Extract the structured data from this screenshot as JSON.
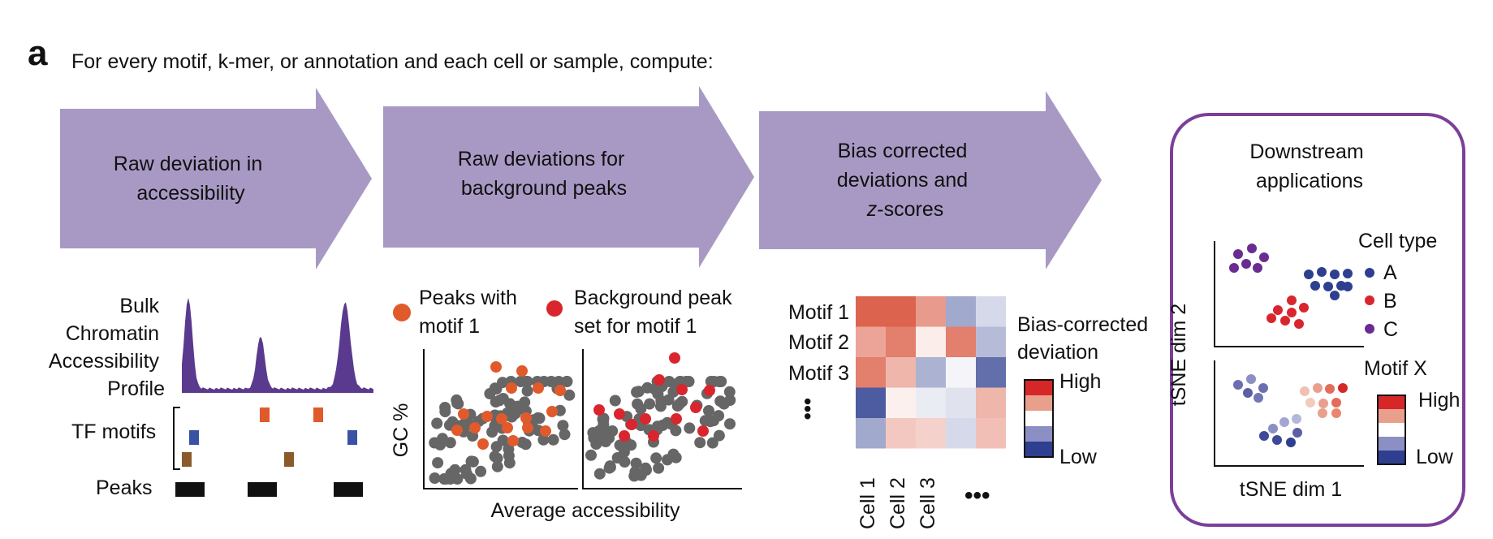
{
  "panel": {
    "letter": "a",
    "title": "For every motif, k-mer, or annotation and each cell or sample, compute:"
  },
  "steps": [
    {
      "lines": [
        "Raw deviation in",
        "accessibility"
      ]
    },
    {
      "lines": [
        "Raw deviations for",
        "background peaks"
      ]
    },
    {
      "lines": [
        "Bias corrected",
        "deviations and",
        "-scores"
      ],
      "italic_prefix": "z"
    }
  ],
  "downstream": {
    "lines": [
      "Downstream",
      "applications"
    ]
  },
  "colors": {
    "arrow": "#a899c4",
    "border": "#7b3f98",
    "motif_peak": "#e05a2c",
    "bg_peak": "#d9262e",
    "gray_dot": "#666666",
    "profile": "#5a3a8e",
    "motif_orange": "#e05a2c",
    "motif_blue": "#3a52a3",
    "motif_brown": "#8b5a2b",
    "cell_a": "#2e3f8f",
    "cell_b": "#d9262e",
    "cell_c": "#6a2c91"
  },
  "bulk": {
    "profile_label": [
      "Bulk",
      "Chromatin",
      "Accessibility",
      "Profile"
    ],
    "tf_label": "TF motifs",
    "peaks_label": "Peaks",
    "profile_heights": [
      0.95,
      0.55,
      0.9
    ],
    "tf_motifs": [
      {
        "row": 0,
        "color": "orange",
        "peak": 1
      },
      {
        "row": 0,
        "color": "orange",
        "peak": 2
      },
      {
        "row": 1,
        "color": "blue",
        "peak": 0
      },
      {
        "row": 1,
        "color": "blue",
        "peak": 3
      },
      {
        "row": 2,
        "color": "brown",
        "peak": 0
      },
      {
        "row": 2,
        "color": "brown",
        "peak": 2
      }
    ]
  },
  "scatter": {
    "legend1": [
      "Peaks with",
      "motif 1"
    ],
    "legend2": [
      "Background peak",
      "set for motif 1"
    ],
    "ylabel": "GC %",
    "xlabel": "Average accessibility"
  },
  "heatmap": {
    "rows": [
      "Motif 1",
      "Motif 2",
      "Motif 3"
    ],
    "rows_more": "•••",
    "cols": [
      "Cell 1",
      "Cell 2",
      "Cell 3"
    ],
    "cols_more": "•••",
    "legend_title": [
      "Bias-corrected",
      "deviation"
    ],
    "legend_high": "High",
    "legend_low": "Low",
    "values": [
      [
        0.85,
        0.85,
        0.55,
        -0.45,
        -0.2
      ],
      [
        0.5,
        0.7,
        0.1,
        0.7,
        -0.35
      ],
      [
        0.7,
        0.4,
        -0.4,
        -0.05,
        -0.75
      ],
      [
        -0.85,
        0.08,
        -0.1,
        -0.15,
        0.4
      ],
      [
        -0.45,
        0.3,
        0.25,
        -0.2,
        0.35
      ]
    ]
  },
  "tsne": {
    "ylabel": "tSNE dim 2",
    "xlabel": "tSNE dim 1",
    "celltype_title": "Cell type",
    "celltypes": [
      "A",
      "B",
      "C"
    ],
    "motif_title": "Motif X",
    "motif_high": "High",
    "motif_low": "Low"
  }
}
